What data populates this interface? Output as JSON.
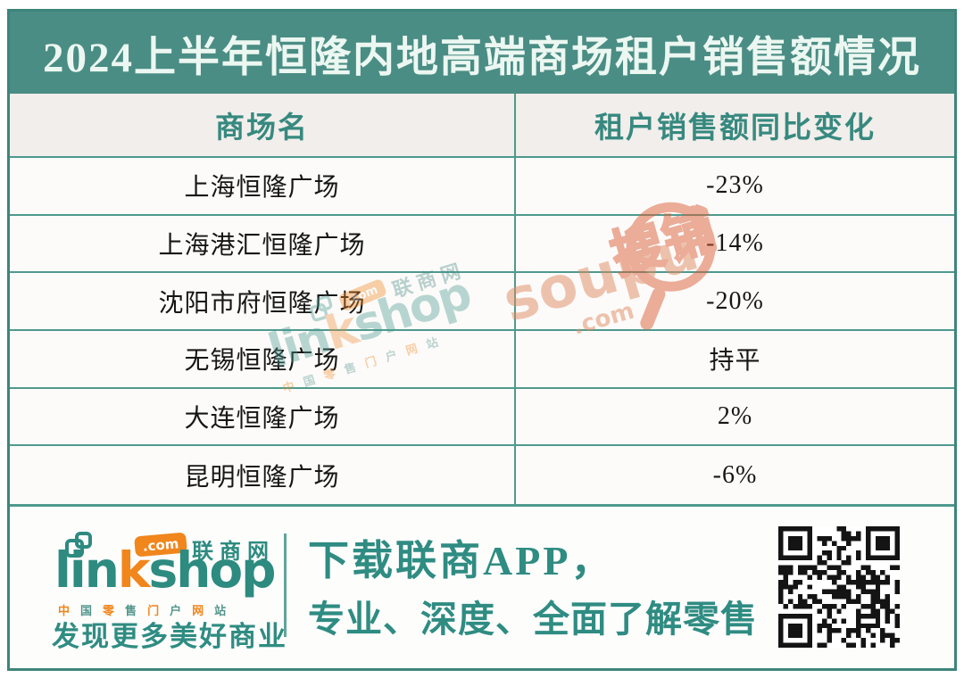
{
  "header": {
    "title": "2024上半年恒隆内地高端商场租户销售额情况"
  },
  "table": {
    "headers": [
      "商场名",
      "租户销售额同比变化"
    ],
    "rows": [
      {
        "mall": "上海恒隆广场",
        "change": "-23%"
      },
      {
        "mall": "上海港汇恒隆广场",
        "change": "-14%"
      },
      {
        "mall": "沈阳市府恒隆广场",
        "change": "-20%"
      },
      {
        "mall": "无锡恒隆广场",
        "change": "持平"
      },
      {
        "mall": "大连恒隆广场",
        "change": "2%"
      },
      {
        "mall": "昆明恒隆广场",
        "change": "-6%"
      }
    ]
  },
  "chart_data": {
    "type": "table",
    "title": "2024上半年恒隆内地高端商场租户销售额情况",
    "columns": [
      "商场名",
      "租户销售额同比变化"
    ],
    "rows": [
      [
        "上海恒隆广场",
        "-23%"
      ],
      [
        "上海港汇恒隆广场",
        "-14%"
      ],
      [
        "沈阳市府恒隆广场",
        "-20%"
      ],
      [
        "无锡恒隆广场",
        "持平"
      ],
      [
        "大连恒隆广场",
        "2%"
      ],
      [
        "昆明恒隆广场",
        "-6%"
      ]
    ],
    "values_numeric_pct": [
      -23,
      -14,
      -20,
      0,
      2,
      -6
    ]
  },
  "footer": {
    "logo": {
      "word_pre": "lin",
      "word_mid": "k",
      "word_post": "shop",
      "domain": ".com",
      "site_name": "联商网",
      "tagline": "中国零售门户网站",
      "slogan": "发现更多美好商业"
    },
    "app_promo_line1": "下载联商APP，",
    "app_promo_line2": "专业、深度、全面了解零售"
  },
  "watermarks": {
    "linkshop": {
      "word_pre": "lin",
      "word_mid": "k",
      "word_post": "shop",
      "domain": ".com",
      "site_name": "联商网",
      "tagline": "中国零售门户网站"
    },
    "soupu": {
      "word": "soupu",
      "domain": ".com",
      "cn": "搜铺"
    }
  },
  "icons": {
    "logo_mark": "overlapping-squares-icon",
    "qr": "qr-code-icon",
    "soupu_mark": "magnifier-circle-icon"
  },
  "colors": {
    "banner_bg": "#4A8D84",
    "frame_border": "#3E857B",
    "table_line": "#4F998E",
    "header_row_bg": "#F1EEEB",
    "header_text": "#37897F",
    "title_text": "#ECF7F1",
    "footer_teal": "#2F8C82",
    "brand_orange": "#F0861C",
    "row_text": "#161616"
  }
}
